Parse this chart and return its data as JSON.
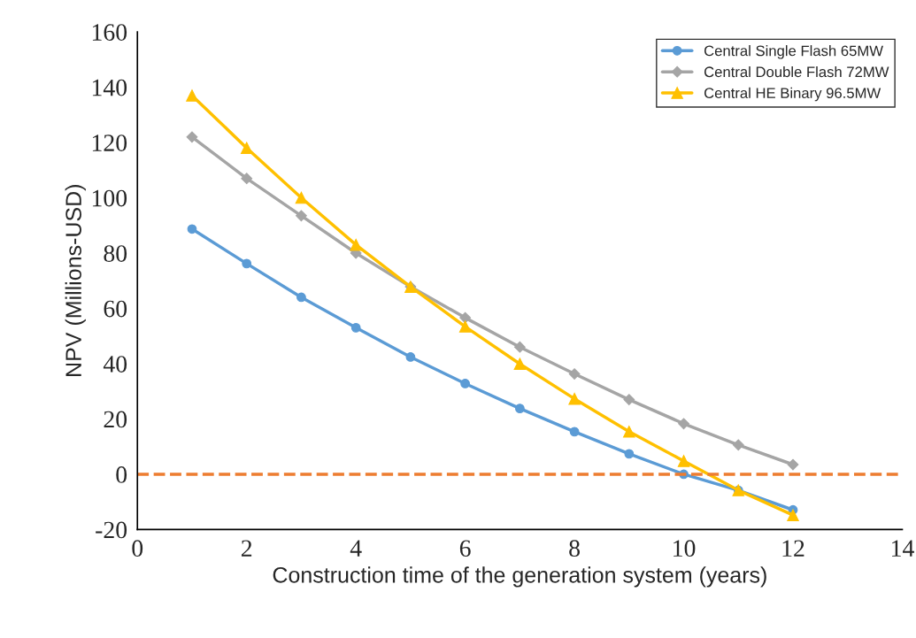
{
  "chart_data": {
    "type": "line",
    "xlabel": "Construction time of the generation system (years)",
    "ylabel": "NPV (Millions-USD)",
    "x": [
      1,
      2,
      3,
      4,
      5,
      6,
      7,
      8,
      9,
      10,
      11,
      12
    ],
    "series": [
      {
        "name": "Central Single Flash 65MW",
        "color": "#5b9bd5",
        "marker": "circle",
        "values": [
          88.7,
          76.2,
          64,
          53,
          42.4,
          32.8,
          23.8,
          15.4,
          7.4,
          0,
          -5.8,
          -12.9
        ]
      },
      {
        "name": "Central Double Flash 72MW",
        "color": "#a5a5a5",
        "marker": "diamond",
        "values": [
          122,
          107,
          93.5,
          80,
          67.8,
          56.6,
          46,
          36.3,
          27,
          18.3,
          10.6,
          3.5
        ]
      },
      {
        "name": "Central HE Binary 96.5MW",
        "color": "#ffc000",
        "marker": "triangle",
        "values": [
          137,
          118,
          100,
          83,
          67.8,
          53.4,
          39.9,
          27.3,
          15.4,
          4.8,
          -5.8,
          -14.8
        ]
      }
    ],
    "xlim": [
      0,
      14
    ],
    "xticks": [
      0,
      2,
      4,
      6,
      8,
      10,
      12,
      14
    ],
    "ylim": [
      -20,
      160
    ],
    "yticks": [
      -20,
      0,
      20,
      40,
      60,
      80,
      100,
      120,
      140,
      160
    ],
    "ref_lines": [
      {
        "axis": "y",
        "value": 0,
        "color": "#ed7d31",
        "line_style": "dashed"
      }
    ],
    "grid": false,
    "legend": "top right",
    "line_style": "solid"
  }
}
